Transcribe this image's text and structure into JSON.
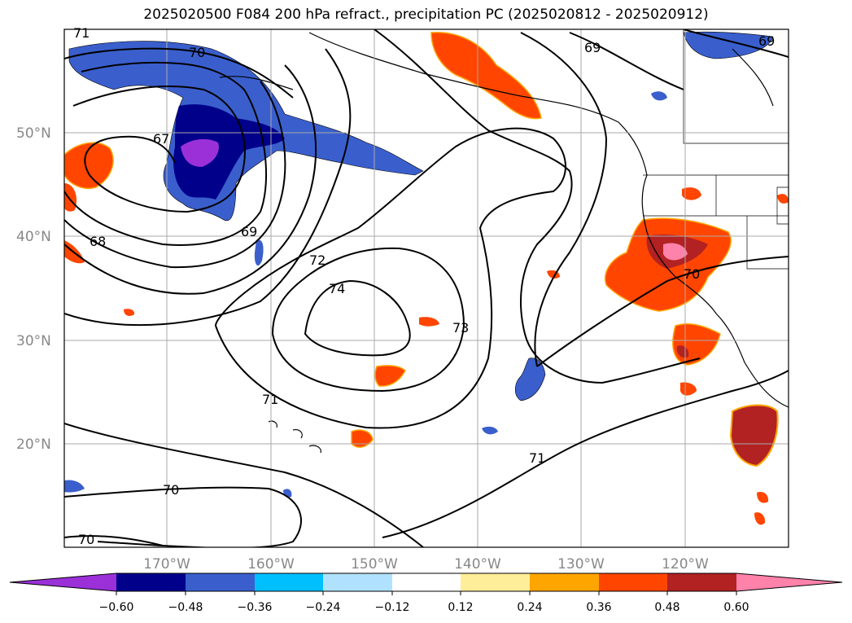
{
  "title": "2025020500 F084 200 hPa refract., precipitation PC (2025020812 - 2025020912)",
  "map": {
    "lat_labels": [
      "50°N",
      "40°N",
      "30°N",
      "20°N"
    ],
    "lon_labels": [
      "170°W",
      "160°W",
      "150°W",
      "140°W",
      "130°W",
      "120°W"
    ],
    "contour_labels": [
      "71",
      "70",
      "67",
      "68",
      "69",
      "72",
      "74",
      "73",
      "71",
      "70",
      "70",
      "71",
      "69",
      "69",
      "70"
    ]
  },
  "colorbar": {
    "ticks": [
      "−0.60",
      "−0.48",
      "−0.36",
      "−0.24",
      "−0.12",
      "0.12",
      "0.24",
      "0.36",
      "0.48",
      "0.60"
    ],
    "colors": [
      "#9b30d9",
      "#00008b",
      "#3a5fcd",
      "#00bfff",
      "#b0e2ff",
      "#ffffff",
      "#ffee99",
      "#ffa500",
      "#ff4500",
      "#b22222",
      "#ff82ab",
      "#ff82ab"
    ]
  }
}
